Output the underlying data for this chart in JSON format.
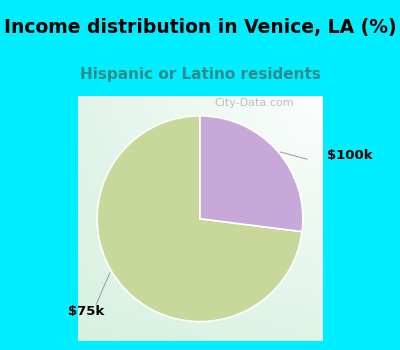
{
  "title": "Income distribution in Venice, LA (%)",
  "subtitle": "Hispanic or Latino residents",
  "title_color": "#000000",
  "subtitle_color": "#2e8b8b",
  "title_fontsize": 13.5,
  "subtitle_fontsize": 11,
  "bg_color": "#00eeff",
  "chart_bg_left": "#d4f0e0",
  "chart_bg_right": "#ffffff",
  "slices": [
    {
      "label": "$75k",
      "value": 73,
      "color": "#c8d89a"
    },
    {
      "label": "$100k",
      "value": 27,
      "color": "#c8a8d8"
    }
  ],
  "wedge_edge_color": "#ffffff",
  "label_fontsize": 9.5,
  "label_color": "#000000",
  "start_angle": 90,
  "watermark": "City-Data.com",
  "watermark_color": "#aaaaaa",
  "watermark_fontsize": 8
}
